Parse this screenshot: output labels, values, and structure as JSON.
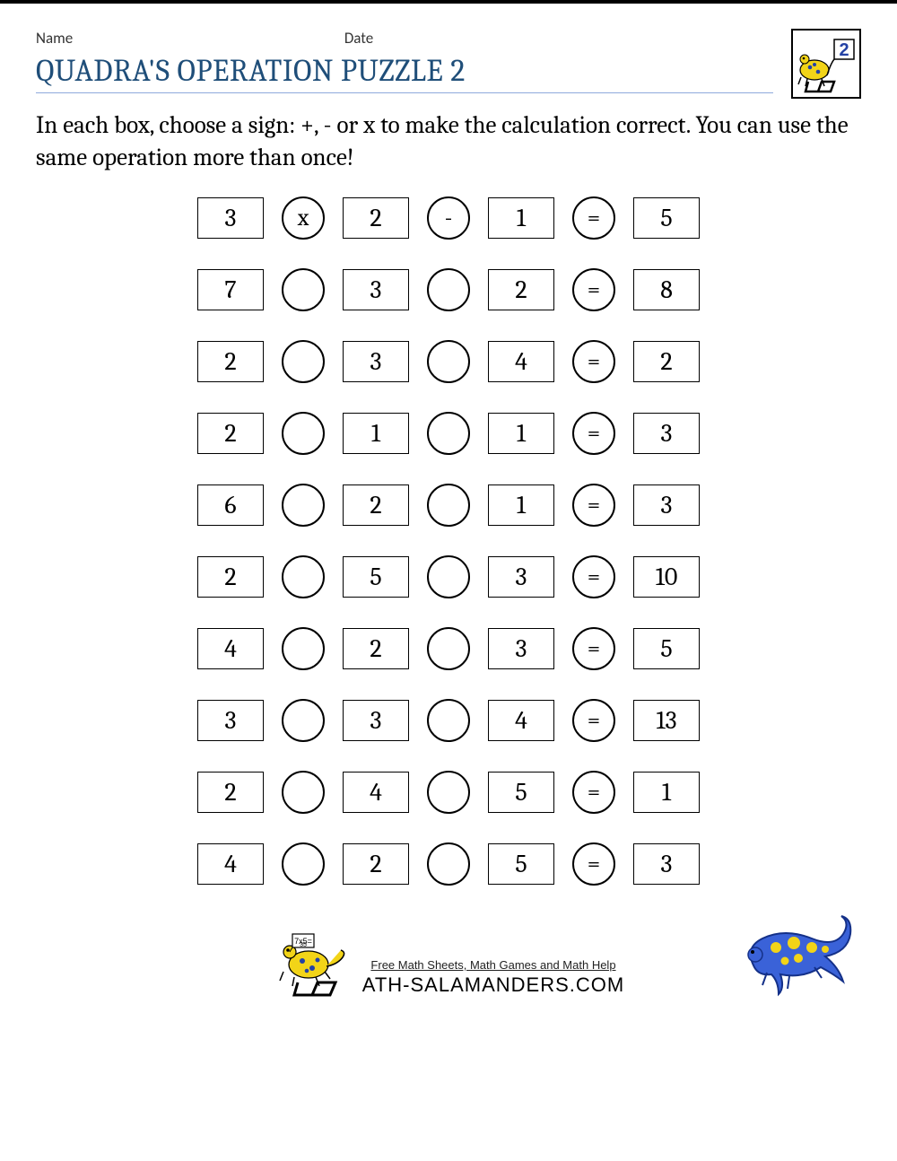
{
  "header": {
    "name_label": "Name",
    "date_label": "Date",
    "title": "QUADRA'S OPERATION PUZZLE 2",
    "badge_number": "2"
  },
  "instructions": "In each box, choose a sign: +, - or x to make the calculation correct. You can use the same operation more than once!",
  "puzzle": {
    "rows": [
      {
        "a": "3",
        "op1": "x",
        "b": "2",
        "op2": "-",
        "c": "1",
        "eq": "=",
        "r": "5"
      },
      {
        "a": "7",
        "op1": "",
        "b": "3",
        "op2": "",
        "c": "2",
        "eq": "=",
        "r": "8"
      },
      {
        "a": "2",
        "op1": "",
        "b": "3",
        "op2": "",
        "c": "4",
        "eq": "=",
        "r": "2"
      },
      {
        "a": "2",
        "op1": "",
        "b": "1",
        "op2": "",
        "c": "1",
        "eq": "=",
        "r": "3"
      },
      {
        "a": "6",
        "op1": "",
        "b": "2",
        "op2": "",
        "c": "1",
        "eq": "=",
        "r": "3"
      },
      {
        "a": "2",
        "op1": "",
        "b": "5",
        "op2": "",
        "c": "3",
        "eq": "=",
        "r": "10"
      },
      {
        "a": "4",
        "op1": "",
        "b": "2",
        "op2": "",
        "c": "3",
        "eq": "=",
        "r": "5"
      },
      {
        "a": "3",
        "op1": "",
        "b": "3",
        "op2": "",
        "c": "4",
        "eq": "=",
        "r": "13"
      },
      {
        "a": "2",
        "op1": "",
        "b": "4",
        "op2": "",
        "c": "5",
        "eq": "=",
        "r": "1"
      },
      {
        "a": "4",
        "op1": "",
        "b": "2",
        "op2": "",
        "c": "5",
        "eq": "=",
        "r": "3"
      }
    ],
    "box_border_color": "#000000",
    "circle_border_color": "#000000",
    "font_family": "Cambria, Georgia, serif"
  },
  "footer": {
    "tagline": "Free Math Sheets, Math Games and Math Help",
    "brand": "ATH-SALAMANDERS.COM"
  },
  "colors": {
    "title_color": "#1f4e79",
    "title_underline": "#8faadc",
    "salamander_body": "#f2d418",
    "salamander_spots": "#2442a5",
    "salamander_right_body": "#3a62d8",
    "salamander_right_spots": "#f2d418"
  }
}
